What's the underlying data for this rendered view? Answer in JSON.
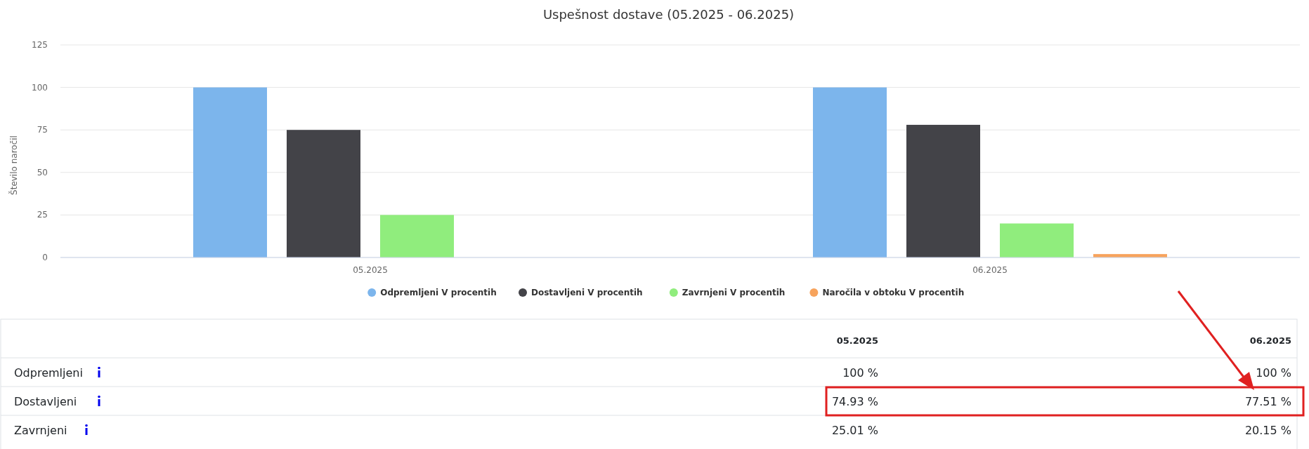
{
  "chart_data": [
    {
      "type": "bar",
      "title": "Uspešnost dostave (05.2025 - 06.2025)",
      "ylabel": "Število naročil",
      "categories": [
        "05.2025",
        "06.2025"
      ],
      "series": [
        {
          "name": "Odpremljeni V procentih",
          "color": "#7cb5ec",
          "values": [
            100,
            100
          ]
        },
        {
          "name": "Dostavljeni V procentih",
          "color": "#434348",
          "values": [
            75,
            78
          ]
        },
        {
          "name": "Zavrnjeni V procentih",
          "color": "#90ed7d",
          "values": [
            25,
            20
          ]
        },
        {
          "name": "Naročila v obtoku V procentih",
          "color": "#f7a35c",
          "values": [
            null,
            2
          ]
        }
      ],
      "ylim": [
        0,
        125
      ],
      "yticks": [
        0,
        25,
        50,
        75,
        100,
        125
      ],
      "grid": "y",
      "legend": "bottom"
    },
    {
      "type": "other",
      "categories": [
        "05.2025",
        "06.2025"
      ],
      "y_categories": [
        "Odpremljeni",
        "Dostavljeni",
        "Zavrnjeni"
      ],
      "cell_labels": [
        [
          "100 %",
          "100 %"
        ],
        [
          "74.93 %",
          "77.51 %"
        ],
        [
          "25.01 %",
          "20.15 %"
        ]
      ]
    }
  ]
}
